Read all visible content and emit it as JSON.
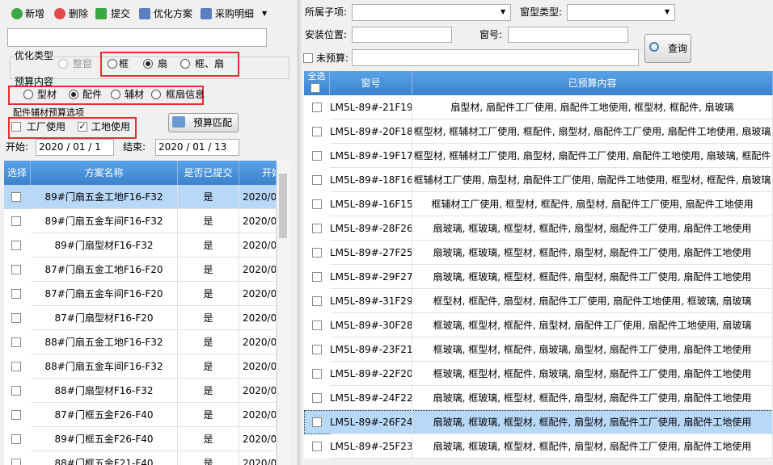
{
  "toolbar": [
    "新增",
    "删除",
    "提交",
    "优化方案",
    "采购明细"
  ],
  "opt_type": {
    "label": "优化类型",
    "options": [
      {
        "text": "整窗",
        "checked": false,
        "disabled": true
      },
      {
        "text": "框",
        "checked": false,
        "disabled": false
      },
      {
        "text": "扇",
        "checked": true,
        "disabled": false
      },
      {
        "text": "框、扇",
        "checked": false,
        "disabled": false
      }
    ]
  },
  "budget_content": {
    "label": "预算内容",
    "options": [
      {
        "text": "型材",
        "checked": false
      },
      {
        "text": "配件",
        "checked": true
      },
      {
        "text": "辅材",
        "checked": false
      },
      {
        "text": "框扇信息",
        "checked": false
      }
    ]
  },
  "accessory_options": {
    "label": "配件辅材预算选项",
    "options": [
      {
        "text": "工厂使用",
        "checked": false
      },
      {
        "text": "工地使用",
        "checked": true
      }
    ]
  },
  "match_button": "预算匹配",
  "start_label": "开始:",
  "start_date": "2020 / 01 / 1",
  "end_label": "结束:",
  "end_date": "2020 / 01 / 13",
  "left_table": {
    "headers": [
      "选择",
      "方案名称",
      "是否已提交",
      "开始"
    ],
    "selected_row": 0,
    "rows": [
      [
        "89#门扇五金工地F16-F32",
        "是",
        "2020/0"
      ],
      [
        "89#门扇五金车间F16-F32",
        "是",
        "2020/0"
      ],
      [
        "89#门扇型材F16-F32",
        "是",
        "2020/0"
      ],
      [
        "87#门扇五金工地F16-F20",
        "是",
        "2020/0"
      ],
      [
        "87#门扇五金车间F16-F20",
        "是",
        "2020/0"
      ],
      [
        "87#门扇型材F16-F20",
        "是",
        "2020/0"
      ],
      [
        "88#门扇五金工地F16-F32",
        "是",
        "2020/0"
      ],
      [
        "88#门扇五金车间F16-F32",
        "是",
        "2020/0"
      ],
      [
        "88#门扇型材F16-F32",
        "是",
        "2020/0"
      ],
      [
        "87#门框五金F26-F40",
        "是",
        "2020/0"
      ],
      [
        "89#门框五金F26-F40",
        "是",
        "2020/0"
      ],
      [
        "88#门框五金F21-F40",
        "是",
        "2020/0"
      ]
    ]
  },
  "filters": {
    "sub_item": "所属子项:",
    "window_type": "窗型类型:",
    "location": "安装位置:",
    "window_no": "窗号:",
    "unbudgeted": "未预算:"
  },
  "query_button": "查询",
  "right_table": {
    "headers": [
      "全选",
      "窗号",
      "已预算内容"
    ],
    "selected_row": 13,
    "rows": [
      [
        "LM5L-89#-21F19",
        "扇型材, 扇配件工厂使用, 扇配件工地使用, 框型材, 框配件, 扇玻璃"
      ],
      [
        "LM5L-89#-20F18",
        "框型材, 框辅材工厂使用, 框配件, 扇型材, 扇配件工厂使用, 扇配件工地使用, 扇玻璃"
      ],
      [
        "LM5L-89#-19F17",
        "框型材, 框辅材工厂使用, 扇型材, 扇配件工厂使用, 扇配件工地使用, 扇玻璃, 框配件"
      ],
      [
        "LM5L-89#-18F16",
        "框辅材工厂使用, 扇型材, 扇配件工厂使用, 扇配件工地使用, 框型材, 框配件, 扇玻璃"
      ],
      [
        "LM5L-89#-16F15",
        "框辅材工厂使用, 框型材, 框配件, 扇型材, 扇配件工厂使用, 扇配件工地使用"
      ],
      [
        "LM5L-89#-28F26",
        "扇玻璃, 框玻璃, 框型材, 框配件, 扇型材, 扇配件工厂使用, 扇配件工地使用"
      ],
      [
        "LM5L-89#-27F25",
        "扇玻璃, 框玻璃, 框型材, 框配件, 扇型材, 扇配件工厂使用, 扇配件工地使用"
      ],
      [
        "LM5L-89#-29F27",
        "扇玻璃, 框玻璃, 框型材, 框配件, 扇型材, 扇配件工厂使用, 扇配件工地使用"
      ],
      [
        "LM5L-89#-31F29",
        "框型材, 框配件, 扇型材, 扇配件工厂使用, 扇配件工地使用, 框玻璃, 扇玻璃"
      ],
      [
        "LM5L-89#-30F28",
        "框玻璃, 框型材, 框配件, 扇型材, 扇配件工厂使用, 扇配件工地使用, 扇玻璃"
      ],
      [
        "LM5L-89#-23F21",
        "框玻璃, 框型材, 框配件, 扇玻璃, 扇型材, 扇配件工厂使用, 扇配件工地使用"
      ],
      [
        "LM5L-89#-22F20",
        "框玻璃, 框型材, 框配件, 扇玻璃, 扇型材, 扇配件工厂使用, 扇配件工地使用"
      ],
      [
        "LM5L-89#-24F22",
        "扇玻璃, 框玻璃, 框型材, 框配件, 扇型材, 扇配件工厂使用, 扇配件工地使用"
      ],
      [
        "LM5L-89#-26F24",
        "扇玻璃, 框玻璃, 框型材, 框配件, 扇型材, 扇配件工厂使用, 扇配件工地使用"
      ],
      [
        "LM5L-89#-25F23",
        "扇玻璃, 框玻璃, 框型材, 框配件, 扇型材, 扇配件工厂使用, 扇配件工地使用"
      ]
    ]
  }
}
